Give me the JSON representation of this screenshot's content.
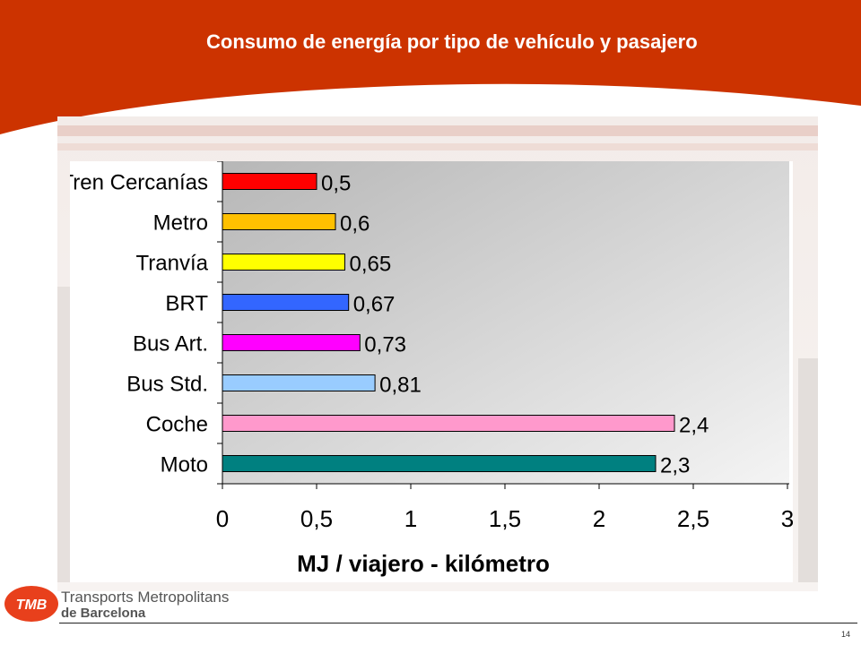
{
  "slide": {
    "title": "Consumo de energía por tipo de vehículo y pasajero",
    "page_number": "14"
  },
  "brand": {
    "logo_text": "TMB",
    "org_line1": "Transports Metropolitans",
    "org_line2": "de Barcelona",
    "colors": {
      "header_red": "#cc3300",
      "text_gray": "#555555"
    }
  },
  "chart_data": {
    "type": "bar",
    "orientation": "horizontal",
    "categories": [
      "Tren Cercanías",
      "Metro",
      "Tranvía",
      "BRT",
      "Bus Art.",
      "Bus Std.",
      "Coche",
      "Moto"
    ],
    "values": [
      0.5,
      0.6,
      0.65,
      0.67,
      0.73,
      0.81,
      2.4,
      2.3
    ],
    "value_labels": [
      "0,5",
      "0,6",
      "0,65",
      "0,67",
      "0,73",
      "0,81",
      "2,4",
      "2,3"
    ],
    "bar_colors": [
      "#ff0000",
      "#ffc000",
      "#ffff00",
      "#3366ff",
      "#ff00ff",
      "#99ccff",
      "#ff99cc",
      "#008080"
    ],
    "xlabel": "MJ / viajero - kilómetro",
    "xlim": [
      0,
      3
    ],
    "xticks": [
      "0",
      "0,5",
      "1",
      "1,5",
      "2",
      "2,5",
      "3"
    ],
    "grid": false,
    "legend": "none",
    "plot_background": "gray gradient"
  }
}
